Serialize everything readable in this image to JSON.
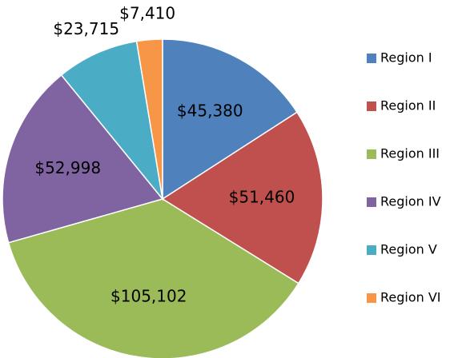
{
  "chart_data": {
    "type": "pie",
    "categories": [
      "Region I",
      "Region II",
      "Region III",
      "Region IV",
      "Region V",
      "Region VI"
    ],
    "values": [
      45380,
      51460,
      105102,
      52998,
      23715,
      7410
    ],
    "value_labels": [
      "$45,380",
      "$51,460",
      "$105,102",
      "$52,998",
      "$23,715",
      "$7,410"
    ],
    "colors": [
      "#4f81bd",
      "#c0504d",
      "#9bbb59",
      "#8064a2",
      "#4bacc6",
      "#f79646"
    ],
    "legend": "right"
  }
}
